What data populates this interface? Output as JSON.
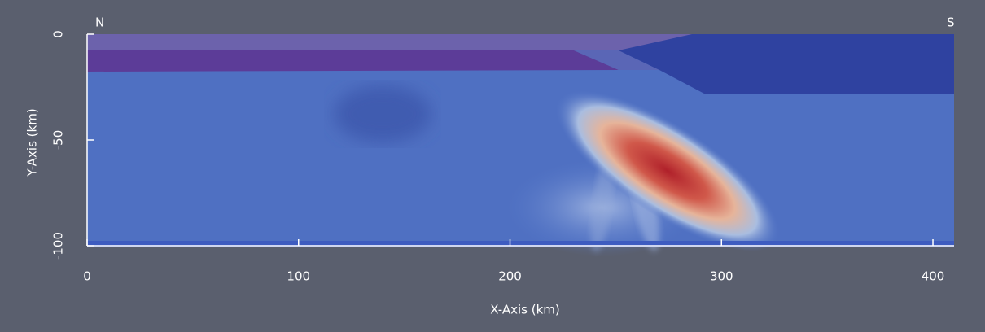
{
  "chart_data": {
    "type": "section",
    "x_label": "X-Axis (km)",
    "y_label": "Y-Axis (km)",
    "left_label": "N",
    "right_label": "S",
    "xlim": [
      0,
      410
    ],
    "ylim": [
      -100,
      0
    ],
    "xticks": [
      0,
      100,
      200,
      300,
      400
    ],
    "yticks": [
      0,
      -50,
      -100
    ]
  }
}
